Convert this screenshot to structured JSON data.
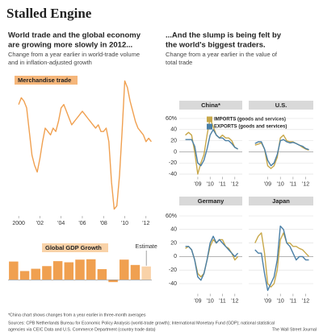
{
  "title": "Stalled Engine",
  "left_heading": [
    "World trade and the global economy",
    "are growing more slowly in 2012..."
  ],
  "left_subtitle": [
    "Change from a year earlier in world-trade volume",
    "and in inflation-adjusted growth"
  ],
  "right_heading": [
    "...And the slump is being felt by",
    "the world's biggest traders."
  ],
  "right_subtitle": [
    "Change from a year earlier in the value of",
    "total trade"
  ],
  "footnote": "*China chart shows changes from a year earlier in three-month averages",
  "sources": [
    "Sources: CPB Netherlands Bureau for Economic Policy Analysis (world-trade growth); International Monetary Fund (GDP); national statistical",
    "agencies via CEIC Data and U.S. Commerce Department (country trade data)"
  ],
  "credit": "The Wall Street Journal",
  "chart_data": [
    {
      "type": "line",
      "title": "Merchandise trade",
      "color": "#f0a050",
      "x": [
        2000,
        2000.25,
        2000.5,
        2000.75,
        2001,
        2001.25,
        2001.5,
        2001.75,
        2002,
        2002.25,
        2002.5,
        2002.75,
        2003,
        2003.25,
        2003.5,
        2003.75,
        2004,
        2004.25,
        2004.5,
        2004.75,
        2005,
        2005.25,
        2005.5,
        2005.75,
        2006,
        2006.25,
        2006.5,
        2006.75,
        2007,
        2007.25,
        2007.5,
        2007.75,
        2008,
        2008.25,
        2008.5,
        2008.75,
        2009,
        2009.25,
        2009.5,
        2009.75,
        2010,
        2010.25,
        2010.5,
        2010.75,
        2011,
        2011.25,
        2011.5,
        2011.75,
        2012,
        2012.25,
        2012.5
      ],
      "values": [
        13,
        15,
        14,
        12,
        5,
        -2,
        -5,
        -7,
        -3,
        2,
        6,
        5,
        4,
        6,
        5,
        8,
        12,
        13,
        11,
        9,
        7,
        8,
        9,
        10,
        11,
        10,
        9,
        8,
        7,
        6,
        7,
        5,
        5,
        6,
        2,
        -10,
        -18,
        -17,
        -8,
        5,
        20,
        18,
        14,
        11,
        8,
        6,
        5,
        4,
        2,
        3,
        2
      ],
      "xlim": [
        1999,
        2012.7
      ],
      "ylim": [
        -20,
        22
      ],
      "xticks": [
        2000,
        {
          "value": 2002,
          "label": "'02"
        },
        {
          "value": 2004,
          "label": "'04"
        },
        {
          "value": 2006,
          "label": "'06"
        },
        {
          "value": 2008,
          "label": "'08"
        },
        {
          "value": 2010,
          "label": "'10"
        },
        {
          "value": 2012,
          "label": "'12"
        }
      ]
    },
    {
      "type": "bar",
      "title": "Global GDP Growth",
      "annotation": "Estimate",
      "x": [
        2000,
        2001,
        2002,
        2003,
        2004,
        2005,
        2006,
        2007,
        2008,
        2009,
        2010,
        2011,
        2012
      ],
      "values": [
        4.8,
        2.3,
        2.9,
        3.6,
        4.9,
        4.6,
        5.3,
        5.4,
        2.8,
        -0.6,
        5.3,
        3.9,
        3.5
      ],
      "colors": [
        "#f0a050",
        "#f0a050",
        "#f0a050",
        "#f0a050",
        "#f0a050",
        "#f0a050",
        "#f0a050",
        "#f0a050",
        "#f0a050",
        "#f0a050",
        "#f0a050",
        "#f0a050",
        "#f9d2a8"
      ],
      "xlim": [
        1999.5,
        2012.5
      ],
      "ylim": [
        -1,
        10
      ]
    },
    {
      "type": "line",
      "title": "China*",
      "legend": "upper right",
      "x": [
        2008,
        2008.25,
        2008.5,
        2008.75,
        2009,
        2009.25,
        2009.5,
        2009.75,
        2010,
        2010.25,
        2010.5,
        2010.75,
        2011,
        2011.25,
        2011.5,
        2011.75,
        2012,
        2012.25
      ],
      "series": [
        {
          "name": "IMPORTS (goods and services)",
          "color": "#c8a84a",
          "values": [
            30,
            35,
            30,
            0,
            -40,
            -20,
            -5,
            30,
            60,
            45,
            30,
            25,
            30,
            25,
            25,
            20,
            8,
            5
          ]
        },
        {
          "name": "EXPORTS (goods and services)",
          "color": "#4a7fa6",
          "values": [
            22,
            22,
            22,
            10,
            -20,
            -25,
            -15,
            5,
            30,
            40,
            30,
            25,
            25,
            20,
            20,
            15,
            8,
            5
          ]
        }
      ],
      "xlim": [
        2007.5,
        2012.6
      ],
      "ylim": [
        -45,
        70
      ],
      "xticks": [
        {
          "value": 2009,
          "label": "'09"
        },
        {
          "value": 2010,
          "label": "'10"
        },
        {
          "value": 2011,
          "label": "'11"
        },
        {
          "value": 2012,
          "label": "'12"
        }
      ],
      "yticks": [
        {
          "value": 60,
          "label": "60%"
        },
        40,
        20,
        0,
        -20,
        -40
      ],
      "grid": true
    },
    {
      "type": "line",
      "title": "U.S.",
      "x": [
        2008,
        2008.25,
        2008.5,
        2008.75,
        2009,
        2009.25,
        2009.5,
        2009.75,
        2010,
        2010.25,
        2010.5,
        2010.75,
        2011,
        2011.25,
        2011.5,
        2011.75,
        2012,
        2012.25
      ],
      "series": [
        {
          "color": "#c8a84a",
          "values": [
            12,
            14,
            16,
            5,
            -25,
            -30,
            -25,
            -10,
            25,
            30,
            20,
            18,
            18,
            15,
            12,
            8,
            5,
            3
          ]
        },
        {
          "color": "#4a7fa6",
          "values": [
            15,
            18,
            18,
            5,
            -15,
            -25,
            -20,
            -5,
            20,
            22,
            18,
            16,
            17,
            15,
            12,
            10,
            6,
            4
          ]
        }
      ],
      "xlim": [
        2007.5,
        2012.6
      ],
      "ylim": [
        -45,
        70
      ],
      "xticks": [
        {
          "value": 2009,
          "label": "'09"
        },
        {
          "value": 2010,
          "label": "'10"
        },
        {
          "value": 2011,
          "label": "'11"
        },
        {
          "value": 2012,
          "label": "'12"
        }
      ],
      "yticks": [
        60,
        40,
        20,
        0,
        -20,
        -40
      ],
      "grid": true
    },
    {
      "type": "line",
      "title": "Germany",
      "x": [
        2008,
        2008.25,
        2008.5,
        2008.75,
        2009,
        2009.25,
        2009.5,
        2009.75,
        2010,
        2010.25,
        2010.5,
        2010.75,
        2011,
        2011.25,
        2011.5,
        2011.75,
        2012,
        2012.25
      ],
      "series": [
        {
          "color": "#c8a84a",
          "values": [
            12,
            15,
            10,
            -5,
            -25,
            -30,
            -25,
            -5,
            15,
            25,
            20,
            25,
            25,
            15,
            12,
            5,
            -5,
            0
          ]
        },
        {
          "color": "#4a7fa6",
          "values": [
            15,
            15,
            10,
            -5,
            -30,
            -35,
            -25,
            -5,
            20,
            30,
            20,
            25,
            20,
            15,
            10,
            5,
            0,
            5
          ]
        }
      ],
      "xlim": [
        2007.5,
        2012.6
      ],
      "ylim": [
        -55,
        70
      ],
      "xticks": [
        {
          "value": 2009,
          "label": "'09"
        },
        {
          "value": 2010,
          "label": "'10"
        },
        {
          "value": 2011,
          "label": "'11"
        },
        {
          "value": 2012,
          "label": "'12"
        }
      ],
      "yticks": [
        {
          "value": 60,
          "label": "60%"
        },
        40,
        20,
        0,
        -20,
        -40
      ],
      "grid": true
    },
    {
      "type": "line",
      "title": "Japan",
      "x": [
        2008,
        2008.25,
        2008.5,
        2008.75,
        2009,
        2009.25,
        2009.5,
        2009.75,
        2010,
        2010.25,
        2010.5,
        2010.75,
        2011,
        2011.25,
        2011.5,
        2011.75,
        2012,
        2012.25
      ],
      "series": [
        {
          "color": "#c8a84a",
          "values": [
            20,
            30,
            35,
            5,
            -40,
            -45,
            -40,
            -20,
            25,
            35,
            20,
            20,
            15,
            15,
            12,
            10,
            5,
            0
          ]
        },
        {
          "color": "#4a7fa6",
          "values": [
            10,
            5,
            5,
            -25,
            -50,
            -40,
            -30,
            -5,
            45,
            40,
            20,
            15,
            5,
            -5,
            0,
            0,
            -5,
            -5
          ]
        }
      ],
      "xlim": [
        2007.5,
        2012.6
      ],
      "ylim": [
        -55,
        70
      ],
      "xticks": [
        {
          "value": 2009,
          "label": "'09"
        },
        {
          "value": 2010,
          "label": "'10"
        },
        {
          "value": 2011,
          "label": "'11"
        },
        {
          "value": 2012,
          "label": "'12"
        }
      ],
      "yticks": [
        60,
        40,
        20,
        0,
        -20,
        -40
      ],
      "grid": true
    }
  ]
}
